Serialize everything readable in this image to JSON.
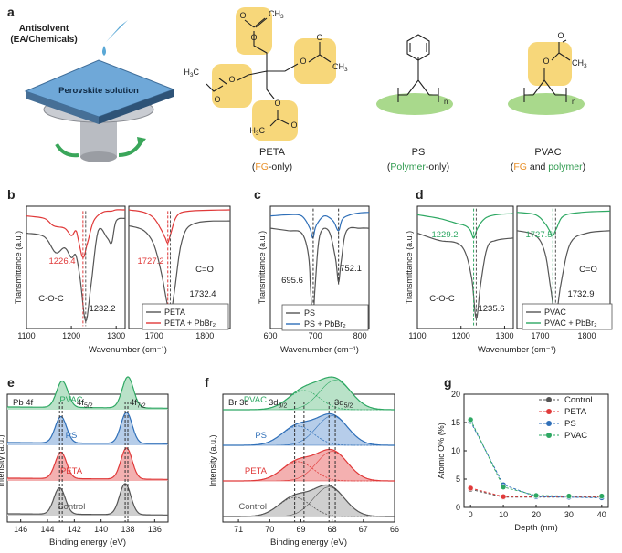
{
  "panel_letters": [
    "a",
    "b",
    "c",
    "d",
    "e",
    "f",
    "g"
  ],
  "schematic": {
    "antisolvent_label": [
      "Antisolvent",
      "(EA/Chemicals)"
    ],
    "substrate_label": "Perovskite solution",
    "molecules": [
      {
        "name": "PETA",
        "desc_parts": [
          [
            "(",
            "#222"
          ],
          [
            "FG",
            "#e8902a"
          ],
          [
            "-only)",
            "#222"
          ]
        ]
      },
      {
        "name": "PS",
        "desc_parts": [
          [
            "(",
            "#222"
          ],
          [
            "Polymer",
            "#2e9a4e"
          ],
          [
            "-only)",
            "#222"
          ]
        ]
      },
      {
        "name": "PVAC",
        "desc_parts": [
          [
            "(",
            "#222"
          ],
          [
            "FG",
            "#e8902a"
          ],
          [
            " and ",
            "#222"
          ],
          [
            "polymer",
            "#2e9a4e"
          ],
          [
            ")",
            "#222"
          ]
        ]
      }
    ],
    "atoms": {
      "ch3": "CH",
      "h3c": "H",
      "ch3_sub": "3",
      "o": "O",
      "n": "n"
    }
  },
  "colors": {
    "control": "#555555",
    "peta": "#e03a3a",
    "ps": "#2f6fb8",
    "pvac": "#2ea863",
    "fg_highlight": "#f7d77a",
    "polymer_highlight": "#a9d98c"
  },
  "chart_data": [
    {
      "id": "b",
      "type": "line",
      "xlabel": "Wavenumber (cm⁻¹)",
      "ylabel": "Transmittance (a.u.)",
      "subpanels": [
        {
          "xlim": [
            1100,
            1320
          ],
          "xticks": [
            1100,
            1200,
            1300
          ],
          "series": [
            {
              "name": "PETA",
              "x": [
                1100,
                1140,
                1165,
                1185,
                1200,
                1210,
                1220,
                1232,
                1244,
                1260,
                1280,
                1290,
                1300,
                1320
              ],
              "y": [
                0.78,
                0.75,
                0.62,
                0.66,
                0.58,
                0.6,
                0.4,
                0.06,
                0.36,
                0.8,
                0.74,
                0.7,
                0.88,
                0.9
              ]
            },
            {
              "name": "PETA + PbBr₂",
              "x": [
                1100,
                1140,
                1160,
                1185,
                1200,
                1210,
                1216,
                1226,
                1236,
                1250,
                1270,
                1290,
                1300,
                1320
              ],
              "y": [
                0.92,
                0.9,
                0.84,
                0.82,
                0.76,
                0.8,
                0.72,
                0.58,
                0.7,
                0.88,
                0.95,
                0.96,
                0.97,
                0.97
              ]
            }
          ],
          "annotations": [
            "1226.4",
            "C-O-C",
            "1232.2"
          ]
        },
        {
          "xlim": [
            1650,
            1850
          ],
          "xticks": [
            1700,
            1800
          ],
          "series": [
            {
              "name": "PETA",
              "x": [
                1650,
                1680,
                1700,
                1715,
                1725,
                1732,
                1740,
                1755,
                1780,
                1850
              ],
              "y": [
                0.84,
                0.8,
                0.68,
                0.44,
                0.22,
                0.12,
                0.3,
                0.72,
                0.86,
                0.88
              ]
            },
            {
              "name": "PETA + PbBr₂",
              "x": [
                1650,
                1680,
                1700,
                1715,
                1722,
                1727,
                1733,
                1745,
                1770,
                1850
              ],
              "y": [
                0.97,
                0.95,
                0.9,
                0.8,
                0.74,
                0.7,
                0.78,
                0.92,
                0.96,
                0.97
              ]
            }
          ],
          "annotations": [
            "1727.2",
            "C=O",
            "1732.4"
          ]
        }
      ],
      "legend": [
        "PETA",
        "PETA + PbBr₂"
      ]
    },
    {
      "id": "c",
      "type": "line",
      "xlabel": "Wavenumber (cm⁻¹)",
      "ylabel": "Transmittance (a.u.)",
      "xlim": [
        600,
        820
      ],
      "xticks": [
        600,
        700,
        800
      ],
      "series": [
        {
          "name": "PS",
          "x": [
            600,
            640,
            670,
            685,
            690,
            695,
            700,
            710,
            730,
            745,
            752,
            758,
            770,
            800,
            820
          ],
          "y": [
            0.82,
            0.8,
            0.78,
            0.6,
            0.3,
            0.06,
            0.35,
            0.76,
            0.8,
            0.58,
            0.38,
            0.55,
            0.8,
            0.82,
            0.82
          ]
        },
        {
          "name": "PS + PbBr₂",
          "x": [
            600,
            640,
            670,
            688,
            695,
            702,
            720,
            740,
            752,
            762,
            790,
            820
          ],
          "y": [
            0.92,
            0.93,
            0.92,
            0.82,
            0.74,
            0.84,
            0.92,
            0.88,
            0.8,
            0.9,
            0.94,
            0.95
          ]
        }
      ],
      "annotations": [
        "695.6",
        "752.1"
      ],
      "legend": [
        "PS",
        "PS + PbBr₂"
      ]
    },
    {
      "id": "d",
      "type": "line",
      "xlabel": "Wavenumber (cm⁻¹)",
      "ylabel": "Transmittance (a.u.)",
      "subpanels": [
        {
          "xlim": [
            1100,
            1320
          ],
          "xticks": [
            1100,
            1200,
            1300
          ],
          "series": [
            {
              "name": "PVAC",
              "x": [
                1100,
                1150,
                1190,
                1210,
                1225,
                1235,
                1245,
                1260,
                1280,
                1320
              ],
              "y": [
                0.78,
                0.72,
                0.7,
                0.62,
                0.4,
                0.08,
                0.36,
                0.66,
                0.72,
                0.74
              ]
            },
            {
              "name": "PVAC + PbBr₂",
              "x": [
                1100,
                1150,
                1190,
                1210,
                1222,
                1229,
                1238,
                1255,
                1280,
                1320
              ],
              "y": [
                0.93,
                0.9,
                0.86,
                0.84,
                0.8,
                0.74,
                0.82,
                0.9,
                0.93,
                0.94
              ]
            }
          ],
          "annotations": [
            "1229.2",
            "C-O-C",
            "1235.6"
          ]
        },
        {
          "xlim": [
            1650,
            1850
          ],
          "xticks": [
            1700,
            1800
          ],
          "series": [
            {
              "name": "PVAC",
              "x": [
                1650,
                1690,
                1710,
                1722,
                1733,
                1745,
                1765,
                1800,
                1850
              ],
              "y": [
                0.8,
                0.76,
                0.62,
                0.34,
                0.1,
                0.38,
                0.7,
                0.78,
                0.8
              ]
            },
            {
              "name": "PVAC + PbBr₂",
              "x": [
                1650,
                1690,
                1710,
                1720,
                1727,
                1735,
                1750,
                1790,
                1850
              ],
              "y": [
                0.95,
                0.93,
                0.86,
                0.8,
                0.76,
                0.82,
                0.92,
                0.95,
                0.96
              ]
            }
          ],
          "annotations": [
            "1727.5",
            "C=O",
            "1732.9"
          ]
        }
      ],
      "legend": [
        "PVAC",
        "PVAC + PbBr₂"
      ]
    },
    {
      "id": "e",
      "type": "line",
      "xlabel": "Binding energy (eV)",
      "ylabel": "Intensity (a.u.)",
      "xlim": [
        147,
        135
      ],
      "xticks": [
        146,
        144,
        142,
        140,
        138,
        136
      ],
      "title": "Pb 4f",
      "peak_labels": [
        "4f",
        "5/2",
        "4f",
        "7/2"
      ],
      "series": [
        {
          "name": "Control",
          "peaks_ev": [
            143.1,
            138.2
          ]
        },
        {
          "name": "PETA",
          "peaks_ev": [
            143.0,
            138.1
          ]
        },
        {
          "name": "PS",
          "peaks_ev": [
            143.0,
            138.1
          ]
        },
        {
          "name": "PVAC",
          "peaks_ev": [
            142.9,
            138.0
          ]
        }
      ]
    },
    {
      "id": "f",
      "type": "area",
      "xlabel": "Binding energy (eV)",
      "ylabel": "Intensity (a.u.)",
      "xlim": [
        71.5,
        66
      ],
      "xticks": [
        71,
        70,
        69,
        68,
        67,
        66
      ],
      "title": "Br 3d",
      "peak_labels": [
        "3d",
        "3/2",
        "3d",
        "5/2"
      ],
      "series": [
        {
          "name": "Control",
          "peaks_ev": [
            69.2,
            68.1
          ]
        },
        {
          "name": "PETA",
          "peaks_ev": [
            69.1,
            68.0
          ]
        },
        {
          "name": "PS",
          "peaks_ev": [
            69.1,
            68.0
          ]
        },
        {
          "name": "PVAC",
          "peaks_ev": [
            68.9,
            67.9
          ]
        }
      ]
    },
    {
      "id": "g",
      "type": "scatter",
      "xlabel": "Depth (nm)",
      "ylabel": "Atomic O% (%)",
      "xlim": [
        -2,
        42
      ],
      "ylim": [
        0,
        20
      ],
      "xticks": [
        0,
        10,
        20,
        30,
        40
      ],
      "yticks": [
        0,
        5,
        10,
        15,
        20
      ],
      "legend_position": "top-right",
      "series": [
        {
          "name": "Control",
          "x": [
            0,
            10,
            20,
            30,
            40
          ],
          "y": [
            3.2,
            1.8,
            1.8,
            1.8,
            1.8
          ]
        },
        {
          "name": "PETA",
          "x": [
            0,
            10,
            20,
            30,
            40
          ],
          "y": [
            3.4,
            1.9,
            1.9,
            1.9,
            1.9
          ]
        },
        {
          "name": "PS",
          "x": [
            0,
            10,
            20,
            30,
            40
          ],
          "y": [
            15.2,
            4.0,
            1.9,
            1.8,
            1.7
          ]
        },
        {
          "name": "PVAC",
          "x": [
            0,
            10,
            20,
            30,
            40
          ],
          "y": [
            15.5,
            3.6,
            2.1,
            2.0,
            2.0
          ]
        }
      ]
    }
  ]
}
